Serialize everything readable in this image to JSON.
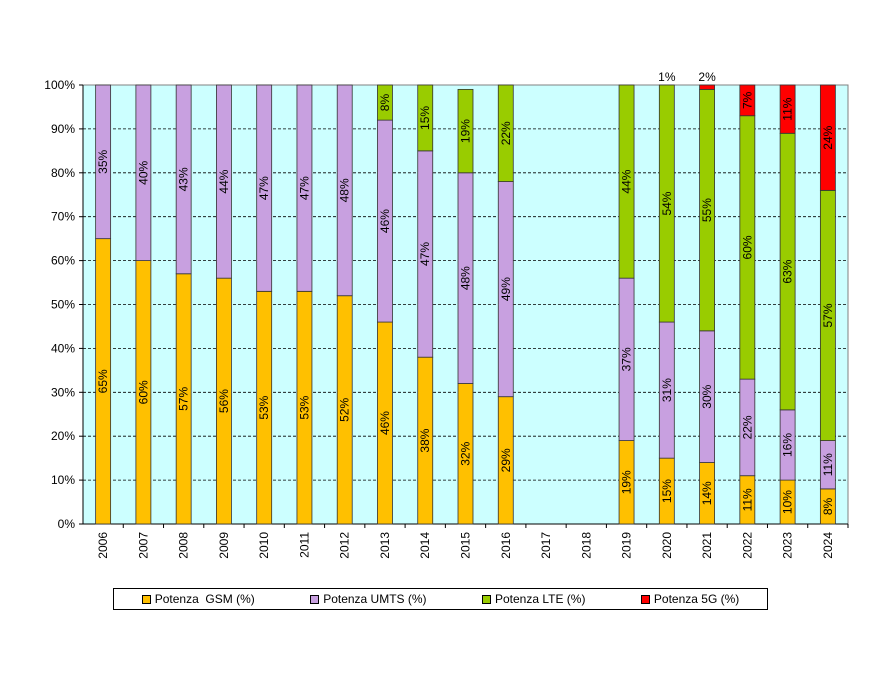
{
  "chart_data": {
    "type": "bar",
    "stacked": "percent",
    "categories": [
      "2006",
      "2007",
      "2008",
      "2009",
      "2010",
      "2011",
      "2012",
      "2013",
      "2014",
      "2015",
      "2016",
      "2017",
      "2018",
      "2019",
      "2020",
      "2021",
      "2022",
      "2023",
      "2024"
    ],
    "series": [
      {
        "name": "Potenza  GSM (%)",
        "color": "#FFC000",
        "values": [
          65,
          60,
          57,
          56,
          53,
          53,
          52,
          46,
          38,
          32,
          29,
          null,
          null,
          19,
          15,
          14,
          11,
          10,
          8
        ]
      },
      {
        "name": "Potenza UMTS (%)",
        "color": "#C8A0E0",
        "values": [
          35,
          40,
          43,
          44,
          47,
          47,
          48,
          46,
          47,
          48,
          49,
          null,
          null,
          37,
          31,
          30,
          22,
          16,
          11
        ]
      },
      {
        "name": "Potenza LTE (%)",
        "color": "#99CC00",
        "values": [
          null,
          null,
          null,
          null,
          null,
          null,
          null,
          8,
          15,
          19,
          22,
          null,
          null,
          44,
          54,
          55,
          60,
          63,
          57
        ]
      },
      {
        "name": "Potenza 5G (%)",
        "color": "#FF0000",
        "values": [
          null,
          null,
          null,
          null,
          null,
          null,
          null,
          null,
          null,
          null,
          null,
          null,
          null,
          null,
          1,
          2,
          7,
          11,
          24
        ]
      }
    ],
    "yticks": [
      "0%",
      "10%",
      "20%",
      "30%",
      "40%",
      "50%",
      "60%",
      "70%",
      "80%",
      "90%",
      "100%"
    ],
    "ylim": [
      0,
      100
    ],
    "grid": "horizontal dashed",
    "legend": "bottom",
    "plot_background": "#CCFFFF"
  }
}
